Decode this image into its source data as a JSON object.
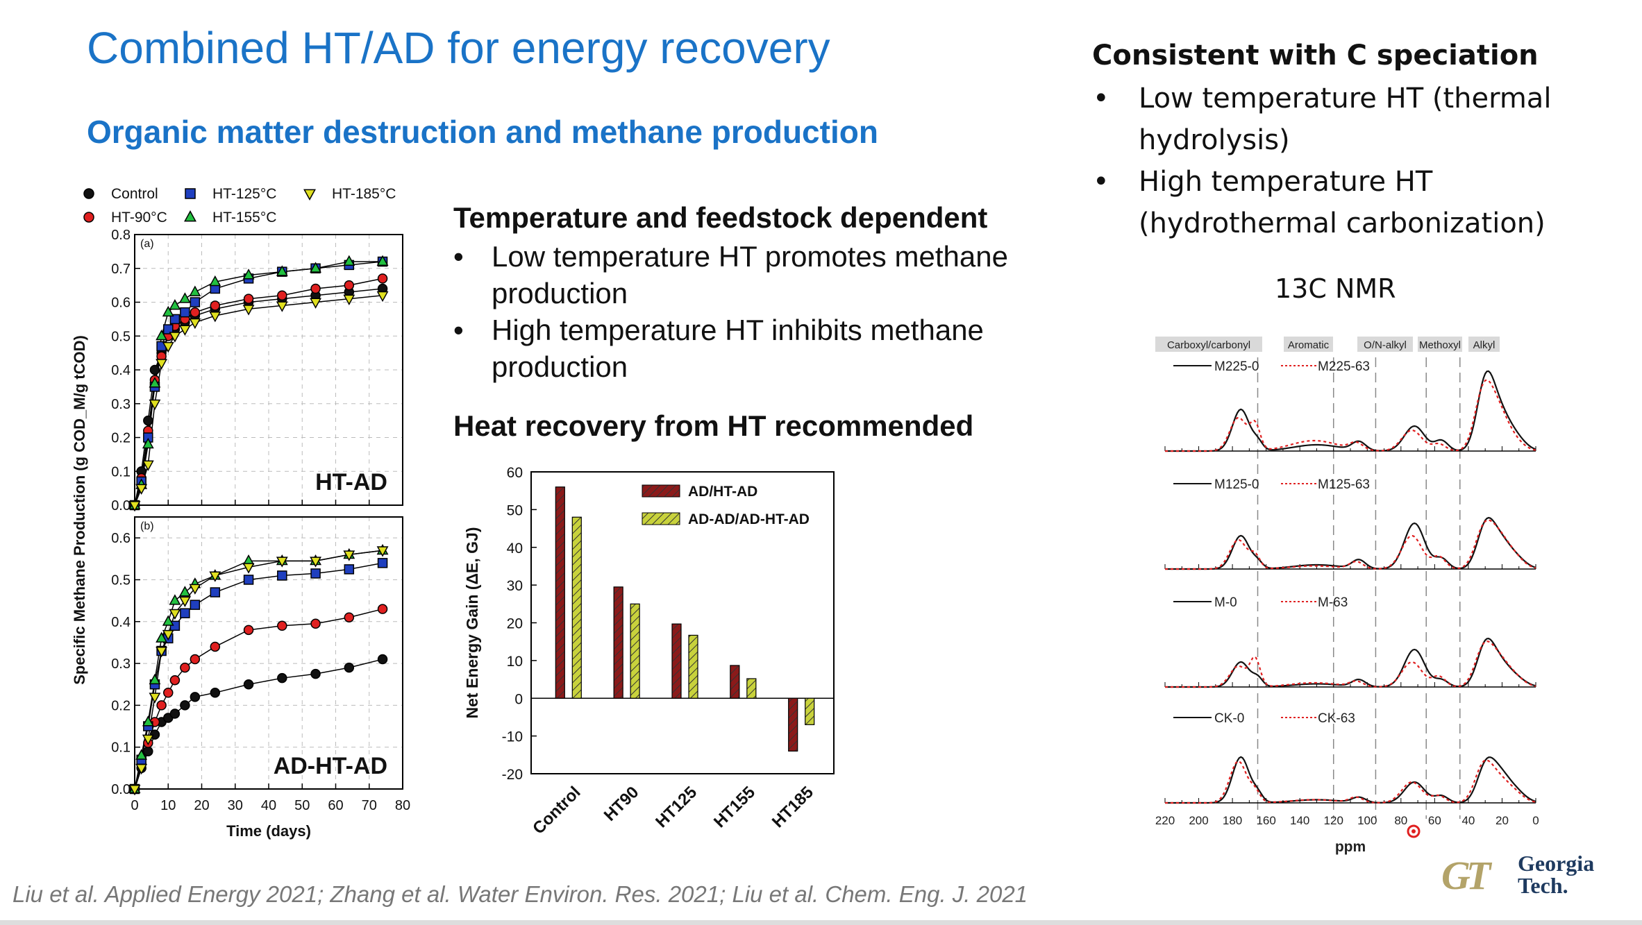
{
  "slide": {
    "title": "Combined HT/AD for energy recovery",
    "subtitle": "Organic matter destruction and methane production",
    "middle": {
      "heading1": "Temperature and feedstock dependent",
      "bullets": [
        "Low temperature HT promotes methane production",
        "High temperature HT inhibits methane production"
      ],
      "heading2": "Heat recovery from HT recommended"
    },
    "right": {
      "heading": "Consistent with C speciation",
      "bullets": [
        "Low temperature HT (thermal hydrolysis)",
        "High temperature HT (hydrothermal carbonization)"
      ],
      "nmr_label": "13C NMR"
    },
    "citation": "Liu et al. Applied Energy 2021; Zhang et al. Water Environ. Res. 2021; Liu et al. Chem. Eng. J. 2021",
    "logo": {
      "mark": "GT",
      "line1": "Georgia",
      "line2": "Tech."
    }
  },
  "colors": {
    "title_blue": "#1a73c7",
    "bar_dark_red": "#8b1a1a",
    "bar_yellow_green": "#c8d23c"
  },
  "chart_data": [
    {
      "type": "line",
      "panel_label": "(a)",
      "annotation": "HT-AD",
      "xlabel": "Time (days)",
      "ylabel": "Specific Methane Production (g COD_M/g tCOD)",
      "xlim": [
        0,
        80
      ],
      "ylim": [
        0,
        0.8
      ],
      "xticks": [
        "0",
        "10",
        "20",
        "30",
        "40",
        "50",
        "60",
        "70",
        "80"
      ],
      "yticks": [
        "0.0",
        "0.1",
        "0.2",
        "0.3",
        "0.4",
        "0.5",
        "0.6",
        "0.7",
        "0.8"
      ],
      "legend": [
        "Control",
        "HT-125°C",
        "HT-185°C",
        "HT-90°C",
        "HT-155°C"
      ],
      "x": [
        0,
        2,
        4,
        6,
        8,
        10,
        12,
        15,
        18,
        24,
        34,
        44,
        54,
        64,
        74
      ],
      "series": [
        {
          "name": "Control",
          "color": "#111111",
          "marker": "circle",
          "values": [
            0,
            0.1,
            0.25,
            0.4,
            0.45,
            0.5,
            0.52,
            0.54,
            0.56,
            0.58,
            0.6,
            0.61,
            0.62,
            0.63,
            0.64
          ]
        },
        {
          "name": "HT-90°C",
          "color": "#e02020",
          "marker": "circle",
          "values": [
            0,
            0.08,
            0.22,
            0.37,
            0.44,
            0.5,
            0.53,
            0.55,
            0.57,
            0.59,
            0.61,
            0.62,
            0.64,
            0.65,
            0.67
          ]
        },
        {
          "name": "HT-125°C",
          "color": "#1f3fbf",
          "marker": "square",
          "values": [
            0,
            0.07,
            0.2,
            0.35,
            0.47,
            0.52,
            0.55,
            0.57,
            0.6,
            0.64,
            0.67,
            0.69,
            0.7,
            0.71,
            0.72
          ]
        },
        {
          "name": "HT-155°C",
          "color": "#22c040",
          "marker": "triangle",
          "values": [
            0,
            0.06,
            0.18,
            0.36,
            0.5,
            0.57,
            0.59,
            0.61,
            0.63,
            0.66,
            0.68,
            0.69,
            0.7,
            0.72,
            0.72
          ]
        },
        {
          "name": "HT-185°C",
          "color": "#e0e020",
          "marker": "triangle-down",
          "values": [
            0,
            0.05,
            0.12,
            0.3,
            0.42,
            0.47,
            0.5,
            0.52,
            0.54,
            0.56,
            0.58,
            0.59,
            0.6,
            0.61,
            0.62
          ]
        }
      ]
    },
    {
      "type": "line",
      "panel_label": "(b)",
      "annotation": "AD-HT-AD",
      "xlim": [
        0,
        80
      ],
      "ylim": [
        0,
        0.65
      ],
      "yticks": [
        "0.0",
        "0.1",
        "0.2",
        "0.3",
        "0.4",
        "0.5",
        "0.6"
      ],
      "x": [
        0,
        2,
        4,
        6,
        8,
        10,
        12,
        15,
        18,
        24,
        34,
        44,
        54,
        64,
        74
      ],
      "series": [
        {
          "name": "Control",
          "color": "#111111",
          "marker": "circle",
          "values": [
            0,
            0.05,
            0.09,
            0.13,
            0.16,
            0.17,
            0.18,
            0.2,
            0.22,
            0.23,
            0.25,
            0.265,
            0.275,
            0.29,
            0.31
          ]
        },
        {
          "name": "HT-90°C",
          "color": "#e02020",
          "marker": "circle",
          "values": [
            0,
            0.06,
            0.11,
            0.16,
            0.2,
            0.23,
            0.26,
            0.29,
            0.31,
            0.34,
            0.38,
            0.39,
            0.395,
            0.41,
            0.43
          ]
        },
        {
          "name": "HT-125°C",
          "color": "#1f3fbf",
          "marker": "square",
          "values": [
            0,
            0.07,
            0.15,
            0.25,
            0.33,
            0.36,
            0.39,
            0.42,
            0.44,
            0.47,
            0.5,
            0.51,
            0.515,
            0.525,
            0.54
          ]
        },
        {
          "name": "HT-155°C",
          "color": "#22c040",
          "marker": "triangle",
          "values": [
            0,
            0.08,
            0.16,
            0.26,
            0.36,
            0.4,
            0.45,
            0.47,
            0.49,
            0.51,
            0.545,
            0.545,
            0.545,
            0.56,
            0.57
          ]
        },
        {
          "name": "HT-185°C",
          "color": "#e0e020",
          "marker": "triangle-down",
          "values": [
            0,
            0.05,
            0.12,
            0.22,
            0.33,
            0.37,
            0.42,
            0.45,
            0.48,
            0.51,
            0.53,
            0.545,
            0.545,
            0.56,
            0.57
          ]
        }
      ]
    },
    {
      "type": "bar",
      "ylabel": "Net Energy Gain (ΔE, GJ)",
      "categories": [
        "Control",
        "HT90",
        "HT125",
        "HT155",
        "HT185"
      ],
      "ylim": [
        -20,
        60
      ],
      "yticks": [
        "-20",
        "-10",
        "0",
        "10",
        "20",
        "30",
        "40",
        "50",
        "60"
      ],
      "series": [
        {
          "name": "AD/HT-AD",
          "color": "#8b1a1a",
          "values": [
            56,
            29.5,
            19.7,
            8.7,
            -14
          ]
        },
        {
          "name": "AD-AD/AD-HT-AD",
          "color": "#c8d23c",
          "values": [
            48,
            25,
            16.7,
            5.2,
            -7
          ]
        }
      ]
    },
    {
      "type": "line",
      "title": "13C NMR",
      "xlabel": "ppm",
      "xlim": [
        220,
        0
      ],
      "xticks": [
        "220",
        "200",
        "180",
        "160",
        "140",
        "120",
        "100",
        "80",
        "60",
        "40",
        "20",
        "0"
      ],
      "regions": [
        "Carboxyl/carbonyl",
        "Aromatic",
        "O/N-alkyl",
        "Methoxyl",
        "Alkyl"
      ],
      "panels": [
        {
          "labels": [
            "M225-0",
            "M225-63"
          ]
        },
        {
          "labels": [
            "M125-0",
            "M125-63"
          ]
        },
        {
          "labels": [
            "M-0",
            "M-63"
          ]
        },
        {
          "labels": [
            "CK-0",
            "CK-63"
          ]
        }
      ],
      "peaks_ppm": [
        175,
        130,
        105,
        72,
        56,
        30,
        22
      ]
    }
  ]
}
